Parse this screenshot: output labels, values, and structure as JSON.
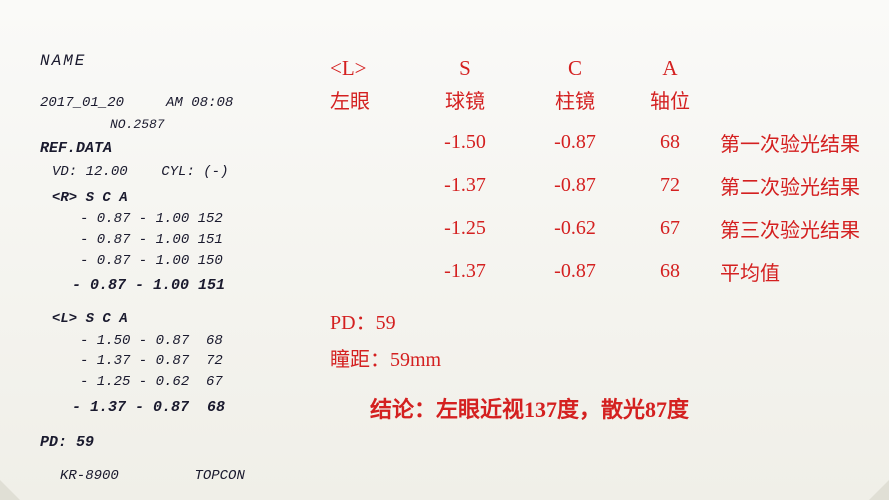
{
  "receipt": {
    "name_label": "NAME",
    "date": "2017_01_20",
    "time_label": "AM 08:08",
    "no_label": "NO.2587",
    "ref_data": "REF.DATA",
    "vd_label": "VD:",
    "vd_value": "12.00",
    "cyl_label": "CYL:",
    "cyl_value": "(-)",
    "r_header": "<R>  S      C     A",
    "r_rows": [
      "- 0.87 - 1.00 152",
      "- 0.87 - 1.00 151",
      "- 0.87 - 1.00 150"
    ],
    "r_avg": "- 0.87 - 1.00 151",
    "l_header": "<L>  S      C     A",
    "l_rows": [
      "- 1.50 - 0.87  68",
      "- 1.37 - 0.87  72",
      "- 1.25 - 0.62  67"
    ],
    "l_avg": "- 1.37 - 0.87  68",
    "pd_label": "PD:",
    "pd_value": "59",
    "model": "KR-8900",
    "brand": "TOPCON"
  },
  "annotation": {
    "header_en": {
      "l": "<L>",
      "s": "S",
      "c": "C",
      "a": "A"
    },
    "header_cn": {
      "l": "左眼",
      "s": "球镜",
      "c": "柱镜",
      "a": "轴位"
    },
    "rows": [
      {
        "s": "-1.50",
        "c": "-0.87",
        "a": "68",
        "note": "第一次验光结果"
      },
      {
        "s": "-1.37",
        "c": "-0.87",
        "a": "72",
        "note": "第二次验光结果"
      },
      {
        "s": "-1.25",
        "c": "-0.62",
        "a": "67",
        "note": "第三次验光结果"
      },
      {
        "s": "-1.37",
        "c": "-0.87",
        "a": "68",
        "note": "平均值"
      }
    ],
    "pd_line": "PD：59",
    "tongju_line": "瞳距：59mm",
    "conclusion": "结论：左眼近视137度，散光87度"
  }
}
